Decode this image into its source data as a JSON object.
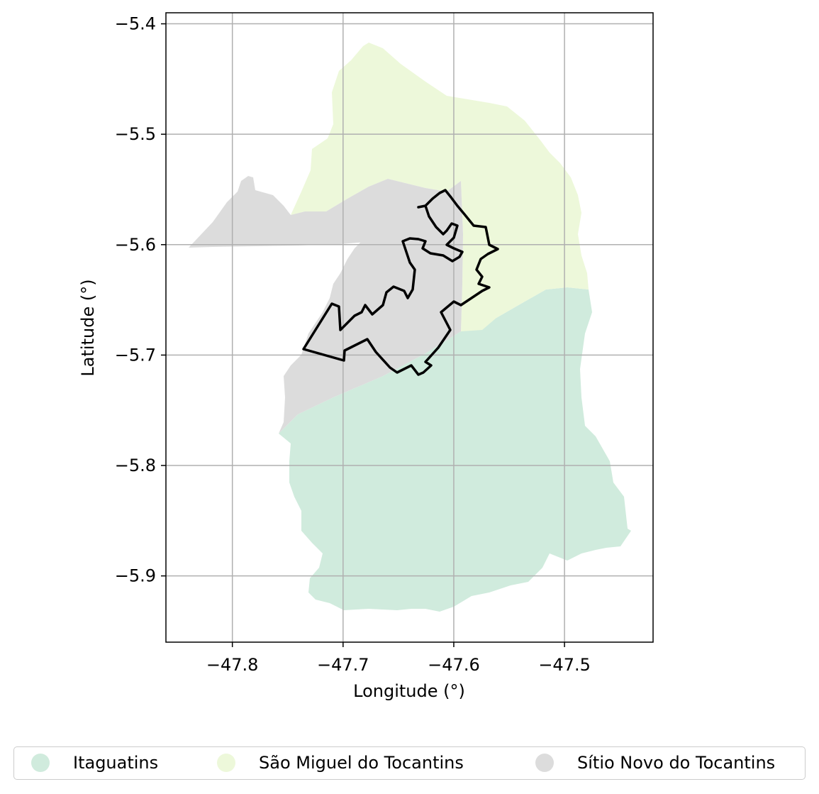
{
  "map": {
    "xlabel": "Longitude (°)",
    "ylabel": "Latitude (°)",
    "xlim": [
      -47.86,
      -47.42
    ],
    "ylim": [
      -5.96,
      -5.39
    ],
    "x_ticks": [
      {
        "value": -47.8,
        "label": "−47.8"
      },
      {
        "value": -47.7,
        "label": "−47.7"
      },
      {
        "value": -47.6,
        "label": "−47.6"
      },
      {
        "value": -47.5,
        "label": "−47.5"
      }
    ],
    "y_ticks": [
      {
        "value": -5.4,
        "label": "−5.4"
      },
      {
        "value": -5.5,
        "label": "−5.5"
      },
      {
        "value": -5.6,
        "label": "−5.6"
      },
      {
        "value": -5.7,
        "label": "−5.7"
      },
      {
        "value": -5.8,
        "label": "−5.8"
      },
      {
        "value": -5.9,
        "label": "−5.9"
      }
    ],
    "grid": true,
    "regions": [
      {
        "name": "Itaguatins",
        "color": "#d0ebdd"
      },
      {
        "name": "São Miguel do Tocantins",
        "color": "#edf8da"
      },
      {
        "name": "Sítio Novo do Tocantins",
        "color": "#dcdcdc"
      }
    ],
    "outline_color": "#000000"
  },
  "legend": {
    "items": [
      {
        "label": "Itaguatins",
        "color": "#d0ebdd"
      },
      {
        "label": "São Miguel do Tocantins",
        "color": "#edf8da"
      },
      {
        "label": "Sítio Novo do Tocantins",
        "color": "#dcdcdc"
      }
    ]
  }
}
